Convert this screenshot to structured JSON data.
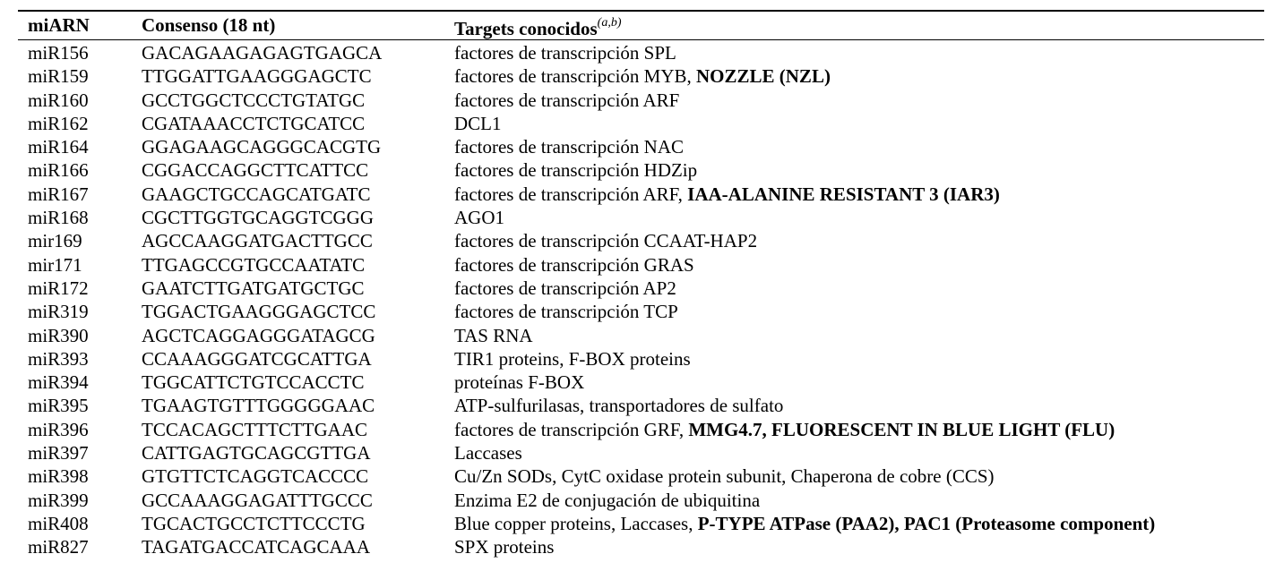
{
  "table": {
    "headers": {
      "col1": "miARN",
      "col2": "Consenso (18 nt)",
      "col3": "Targets conocidos",
      "col3_superscript": "(a,b)"
    },
    "rows": [
      {
        "mirna": "miR156",
        "consensus": "GACAGAAGAGAGTGAGCA",
        "targets": "factores de transcripción SPL",
        "targets_bold": ""
      },
      {
        "mirna": "miR159",
        "consensus": "TTGGATTGAAGGGAGCTC",
        "targets": "factores de transcripción MYB, ",
        "targets_bold": "NOZZLE (NZL)"
      },
      {
        "mirna": "miR160",
        "consensus": "GCCTGGCTCCCTGTATGC",
        "targets": "factores de transcripción ARF",
        "targets_bold": ""
      },
      {
        "mirna": "miR162",
        "consensus": "CGATAAACCTCTGCATCC",
        "targets": "DCL1",
        "targets_bold": ""
      },
      {
        "mirna": "miR164",
        "consensus": "GGAGAAGCAGGGCACGTG",
        "targets": "factores de transcripción NAC",
        "targets_bold": ""
      },
      {
        "mirna": "miR166",
        "consensus": "CGGACCAGGCTTCATTCC",
        "targets": "factores de transcripción HDZip",
        "targets_bold": ""
      },
      {
        "mirna": "miR167",
        "consensus": "GAAGCTGCCAGCATGATC",
        "targets": "factores de transcripción ARF, ",
        "targets_bold": "IAA-ALANINE RESISTANT 3 (IAR3)"
      },
      {
        "mirna": "miR168",
        "consensus": "CGCTTGGTGCAGGTCGGG",
        "targets": "AGO1",
        "targets_bold": ""
      },
      {
        "mirna": "mir169",
        "consensus": "AGCCAAGGATGACTTGCC",
        "targets": "factores de transcripción CCAAT-HAP2",
        "targets_bold": ""
      },
      {
        "mirna": "mir171",
        "consensus": "TTGAGCCGTGCCAATATC",
        "targets": "factores de transcripción GRAS",
        "targets_bold": ""
      },
      {
        "mirna": "miR172",
        "consensus": "GAATCTTGATGATGCTGC",
        "targets": "factores de transcripción AP2",
        "targets_bold": ""
      },
      {
        "mirna": "miR319",
        "consensus": "TGGACTGAAGGGAGCTCC",
        "targets": "factores de transcripción TCP",
        "targets_bold": ""
      },
      {
        "mirna": "miR390",
        "consensus": "AGCTCAGGAGGGATAGCG",
        "targets": "TAS RNA",
        "targets_bold": ""
      },
      {
        "mirna": "miR393",
        "consensus": "CCAAAGGGATCGCATTGA",
        "targets": "TIR1 proteins, F-BOX proteins",
        "targets_bold": ""
      },
      {
        "mirna": "miR394",
        "consensus": "TGGCATTCTGTCCACCTC",
        "targets": "proteínas F-BOX",
        "targets_bold": ""
      },
      {
        "mirna": "miR395",
        "consensus": "TGAAGTGTTTGGGGGAAC",
        "targets": "ATP-sulfurilasas, transportadores de sulfato",
        "targets_bold": ""
      },
      {
        "mirna": "miR396",
        "consensus": "TCCACAGCTTTCTTGAAC",
        "targets": "factores de transcripción GRF, ",
        "targets_bold": "MMG4.7, FLUORESCENT IN BLUE LIGHT (FLU)"
      },
      {
        "mirna": "miR397",
        "consensus": "CATTGAGTGCAGCGTTGA",
        "targets": "Laccases",
        "targets_bold": ""
      },
      {
        "mirna": "miR398",
        "consensus": "GTGTTCTCAGGTCACCCC",
        "targets": "Cu/Zn SODs, CytC oxidase protein subunit, Chaperona de cobre (CCS)",
        "targets_bold": ""
      },
      {
        "mirna": "miR399",
        "consensus": "GCCAAAGGAGATTTGCCC",
        "targets": "Enzima E2 de conjugación de ubiquitina",
        "targets_bold": ""
      },
      {
        "mirna": "miR408",
        "consensus": "TGCACTGCCTCTTCCCTG",
        "targets": "Blue copper proteins, Laccases, ",
        "targets_bold": "P-TYPE ATPase (PAA2), PAC1 (Proteasome component)"
      },
      {
        "mirna": "miR827",
        "consensus": "TAGATGACCATCAGCAAA",
        "targets": "SPX proteins",
        "targets_bold": ""
      }
    ]
  }
}
